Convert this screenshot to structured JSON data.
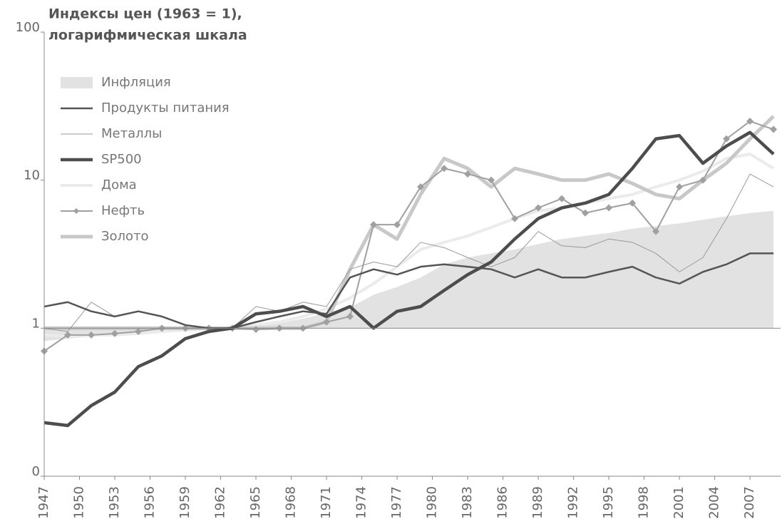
{
  "chart_data": {
    "type": "line",
    "title": "Индексы цен (1963 = 1),",
    "subtitle": "логарифмическая шкала",
    "log_y": true,
    "x": [
      1947,
      1949,
      1951,
      1953,
      1955,
      1957,
      1959,
      1961,
      1963,
      1965,
      1967,
      1969,
      1971,
      1973,
      1975,
      1977,
      1979,
      1981,
      1983,
      1985,
      1987,
      1989,
      1991,
      1993,
      1995,
      1997,
      1999,
      2001,
      2003,
      2005,
      2007,
      2009
    ],
    "xlim": [
      1947,
      2009.6
    ],
    "xticks": [
      1947,
      1950,
      1953,
      1956,
      1959,
      1962,
      1965,
      1968,
      1971,
      1974,
      1977,
      1980,
      1983,
      1986,
      1989,
      1992,
      1995,
      1998,
      2001,
      2004,
      2007
    ],
    "ylim": [
      0.1,
      100
    ],
    "yticks": [
      {
        "value": 0.1,
        "label": "0"
      },
      1,
      10,
      100
    ],
    "series": [
      {
        "name": "Инфляция",
        "color": "#e2e2e2",
        "style": "area",
        "values": [
          0.82,
          0.85,
          0.88,
          0.9,
          0.92,
          0.94,
          0.97,
          0.99,
          1.0,
          1.03,
          1.08,
          1.16,
          1.27,
          1.38,
          1.68,
          1.9,
          2.2,
          2.7,
          3.0,
          3.2,
          3.4,
          3.7,
          4.0,
          4.2,
          4.4,
          4.7,
          4.9,
          5.1,
          5.4,
          5.7,
          6.0,
          6.2
        ]
      },
      {
        "name": "Продукты питания",
        "color": "#555555",
        "width": 2.5,
        "values": [
          1.4,
          1.5,
          1.3,
          1.2,
          1.3,
          1.2,
          1.05,
          1.0,
          1.0,
          1.1,
          1.2,
          1.3,
          1.25,
          2.2,
          2.5,
          2.3,
          2.6,
          2.7,
          2.6,
          2.5,
          2.2,
          2.5,
          2.2,
          2.2,
          2.4,
          2.6,
          2.2,
          2.0,
          2.4,
          2.7,
          3.2,
          3.2
        ]
      },
      {
        "name": "Металлы",
        "color": "#999999",
        "width": 1,
        "values": [
          1.0,
          0.95,
          1.5,
          1.2,
          1.3,
          1.2,
          1.05,
          1.0,
          1.0,
          1.4,
          1.3,
          1.5,
          1.4,
          2.5,
          2.8,
          2.6,
          3.8,
          3.5,
          3.0,
          2.6,
          3.0,
          4.5,
          3.6,
          3.5,
          4.0,
          3.8,
          3.2,
          2.4,
          3.0,
          5.5,
          11,
          9
        ]
      },
      {
        "name": "SP500",
        "color": "#4d4d4d",
        "width": 4.5,
        "values": [
          0.23,
          0.22,
          0.3,
          0.37,
          0.55,
          0.65,
          0.85,
          0.95,
          1.0,
          1.25,
          1.3,
          1.4,
          1.2,
          1.4,
          1.0,
          1.3,
          1.4,
          1.8,
          2.3,
          2.8,
          4.0,
          5.5,
          6.5,
          7,
          8,
          12,
          19,
          20,
          13,
          17,
          21,
          15
        ]
      },
      {
        "name": "Дома",
        "color": "#ebebeb",
        "width": 4,
        "values": [
          0.9,
          0.88,
          0.9,
          0.9,
          0.92,
          0.95,
          0.97,
          0.99,
          1.0,
          1.05,
          1.1,
          1.2,
          1.35,
          1.6,
          2.0,
          2.6,
          3.4,
          3.8,
          4.2,
          4.8,
          5.5,
          6.2,
          6.5,
          7.0,
          7.5,
          8.0,
          9.0,
          10,
          11.5,
          14,
          15,
          12
        ]
      },
      {
        "name": "Нефть",
        "color": "#a0a0a0",
        "width": 2,
        "marker": "diamond",
        "values": [
          0.7,
          0.9,
          0.9,
          0.92,
          0.95,
          1.0,
          1.0,
          1.0,
          1.0,
          0.98,
          1.0,
          1.0,
          1.1,
          1.2,
          5.0,
          5.0,
          9,
          12,
          11,
          10,
          5.5,
          6.5,
          7.5,
          6.0,
          6.5,
          7.0,
          4.5,
          9,
          10,
          19,
          25,
          22
        ]
      },
      {
        "name": "Золото",
        "color": "#c8c8c8",
        "width": 5,
        "values": [
          1.0,
          1.0,
          1.0,
          1.0,
          1.0,
          1.0,
          1.0,
          1.0,
          1.0,
          1.0,
          1.0,
          1.0,
          1.1,
          2.5,
          5,
          4,
          8,
          14,
          12,
          9,
          12,
          11,
          10,
          10,
          11,
          9.5,
          8,
          7.5,
          10,
          13,
          19,
          27
        ]
      }
    ]
  }
}
